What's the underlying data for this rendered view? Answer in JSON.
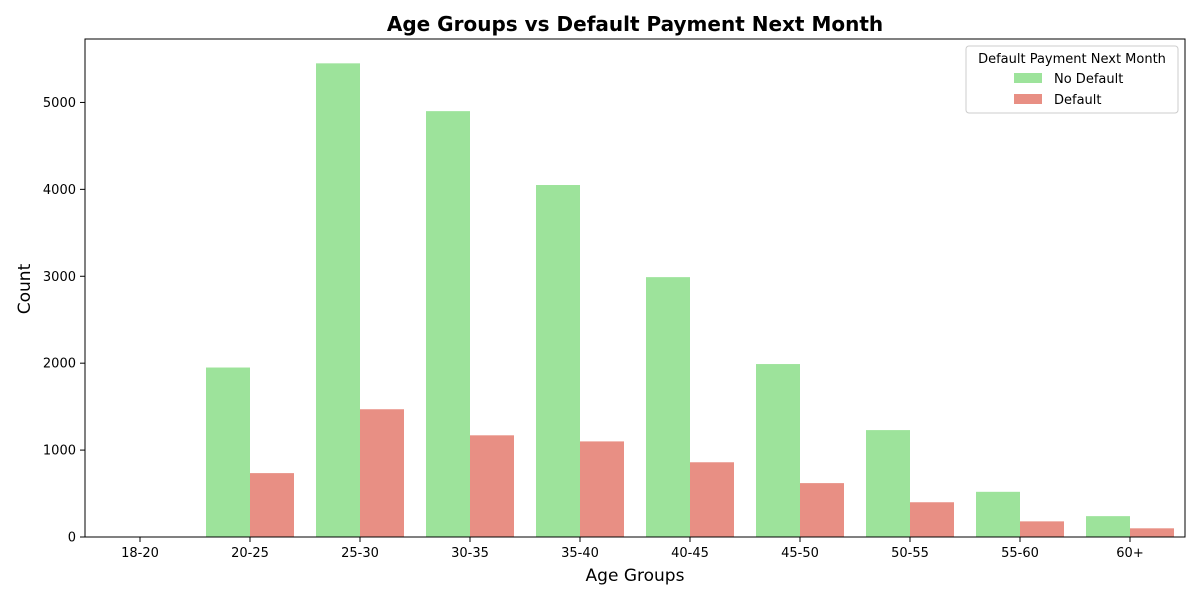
{
  "chart_data": {
    "type": "bar",
    "title": "Age Groups vs Default Payment Next Month",
    "xlabel": "Age Groups",
    "ylabel": "Count",
    "categories": [
      "18-20",
      "20-25",
      "25-30",
      "30-35",
      "35-40",
      "40-45",
      "45-50",
      "50-55",
      "55-60",
      "60+"
    ],
    "series": [
      {
        "name": "No Default",
        "color": "#9de39b",
        "values": [
          0,
          1950,
          5450,
          4900,
          4050,
          2990,
          1990,
          1230,
          520,
          240
        ]
      },
      {
        "name": "Default",
        "color": "#e88f84",
        "values": [
          0,
          735,
          1470,
          1170,
          1100,
          860,
          620,
          400,
          180,
          100
        ]
      }
    ],
    "ylim": [
      0,
      5730
    ],
    "yticks": [
      0,
      1000,
      2000,
      3000,
      4000,
      5000
    ],
    "legend": {
      "title": "Default Payment Next Month",
      "placement": "top-right"
    },
    "grid": false
  }
}
